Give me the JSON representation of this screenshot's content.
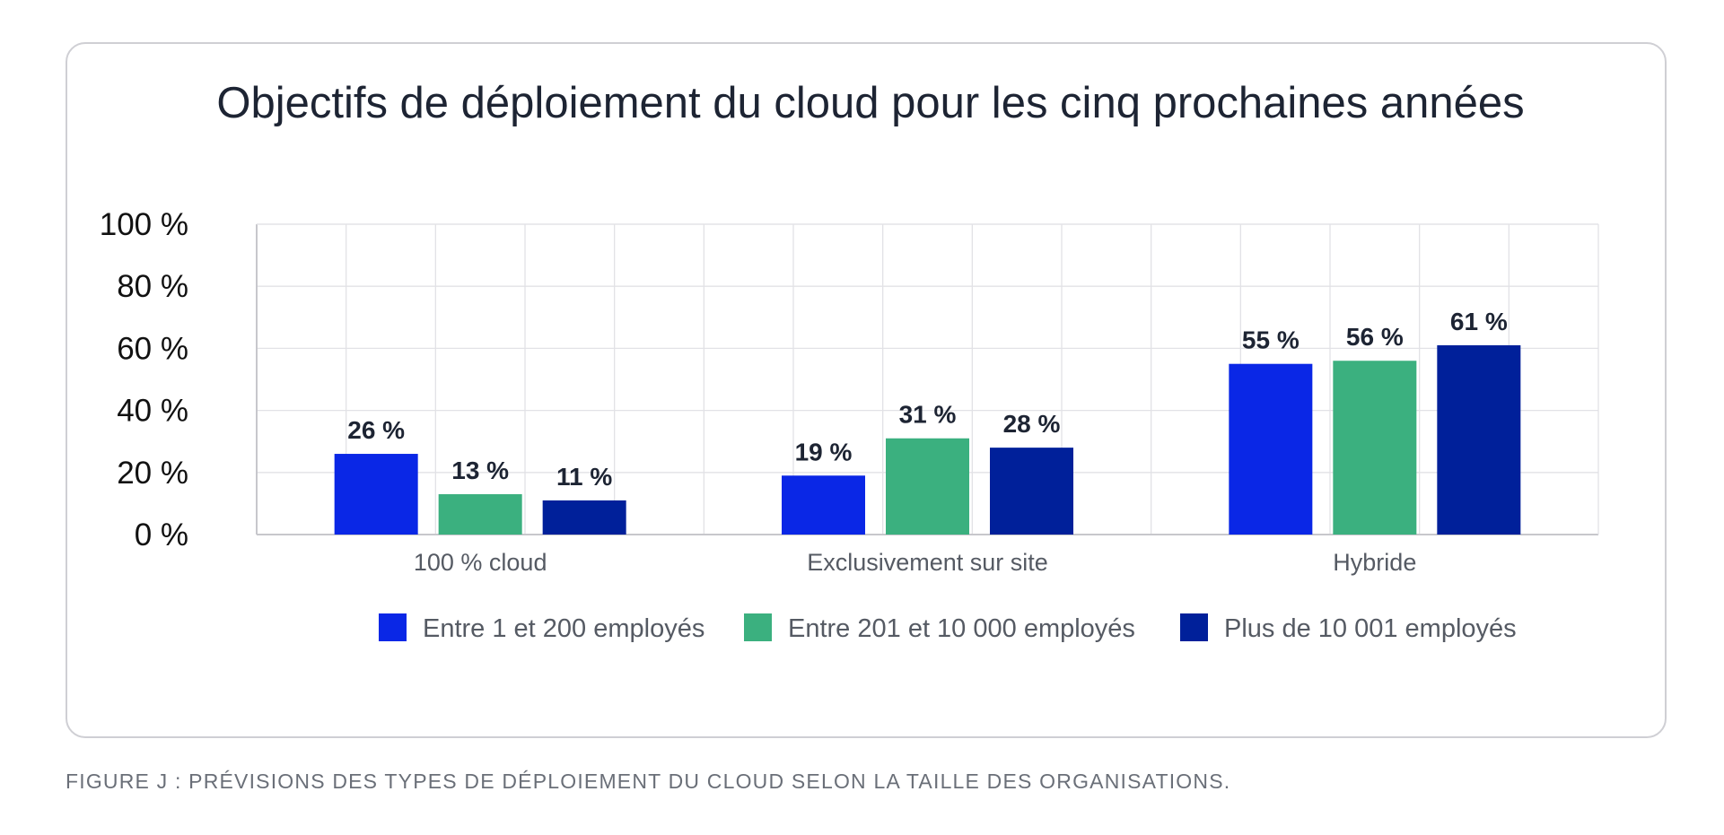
{
  "chart_data": {
    "type": "bar",
    "title": "Objectifs de déploiement du cloud pour les cinq prochaines années",
    "categories": [
      "100 % cloud",
      "Exclusivement sur site",
      "Hybride"
    ],
    "series": [
      {
        "name": "Entre 1 et 200 employés",
        "color": "#0a27e6",
        "values": [
          26,
          19,
          55
        ],
        "labels": [
          "26 %",
          "19 %",
          "55 %"
        ]
      },
      {
        "name": "Entre 201 et 10 000 employés",
        "color": "#3bb07f",
        "values": [
          13,
          31,
          56
        ],
        "labels": [
          "13 %",
          "31 %",
          "56 %"
        ]
      },
      {
        "name": "Plus de 10 001 employés",
        "color": "#00209a",
        "values": [
          11,
          28,
          61
        ],
        "labels": [
          "11 %",
          "28 %",
          "61 %"
        ]
      }
    ],
    "yticks": [
      0,
      20,
      40,
      60,
      80,
      100
    ],
    "ytick_labels": [
      "0 %",
      "20 %",
      "40 %",
      "60 %",
      "80 %",
      "100 %"
    ],
    "ylim": [
      0,
      100
    ],
    "grid": true,
    "legend_position": "bottom"
  },
  "caption": "FIGURE J : PRÉVISIONS DES TYPES DE DÉPLOIEMENT DU CLOUD SELON LA TAILLE DES ORGANISATIONS."
}
